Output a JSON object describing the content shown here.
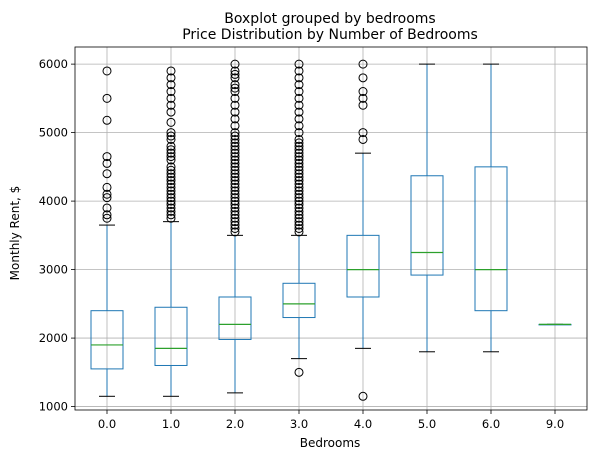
{
  "chart_data": {
    "type": "boxplot",
    "suptitle": "Boxplot grouped by bedrooms",
    "title": "Price Distribution by Number of Bedrooms",
    "xlabel": "Bedrooms",
    "ylabel": "Monthly Rent, $",
    "ylim": [
      950,
      6250
    ],
    "yticks": [
      1000,
      2000,
      3000,
      4000,
      5000,
      6000
    ],
    "grid": true,
    "colors": {
      "box": "#1f77b4",
      "median": "#2ca02c",
      "whisker_cap": "#000000",
      "grid": "#b0b0b0"
    },
    "categories": [
      "0.0",
      "1.0",
      "2.0",
      "3.0",
      "4.0",
      "5.0",
      "6.0",
      "9.0"
    ],
    "boxes": [
      {
        "category": "0.0",
        "whislo": 1150,
        "q1": 1550,
        "med": 1900,
        "q3": 2400,
        "whishi": 3650,
        "fliers": [
          3750,
          3800,
          3900,
          4050,
          4100,
          4200,
          4400,
          4550,
          4650,
          5180,
          5500,
          5900
        ]
      },
      {
        "category": "1.0",
        "whislo": 1150,
        "q1": 1600,
        "med": 1850,
        "q3": 2450,
        "whishi": 3700,
        "fliers": [
          3750,
          3800,
          3850,
          3900,
          3950,
          4000,
          4050,
          4100,
          4150,
          4200,
          4250,
          4300,
          4350,
          4400,
          4450,
          4500,
          4600,
          4650,
          4700,
          4750,
          4800,
          4900,
          4950,
          5000,
          5150,
          5300,
          5400,
          5500,
          5600,
          5700,
          5800,
          5900
        ]
      },
      {
        "category": "2.0",
        "whislo": 1200,
        "q1": 1980,
        "med": 2200,
        "q3": 2600,
        "whishi": 3500,
        "fliers": [
          3550,
          3600,
          3650,
          3700,
          3750,
          3800,
          3850,
          3900,
          3950,
          4000,
          4050,
          4100,
          4150,
          4200,
          4250,
          4300,
          4350,
          4400,
          4450,
          4500,
          4550,
          4600,
          4650,
          4700,
          4750,
          4800,
          4850,
          4900,
          4950,
          5000,
          5100,
          5200,
          5300,
          5400,
          5500,
          5600,
          5650,
          5700,
          5800,
          5850,
          5900,
          6000
        ]
      },
      {
        "category": "3.0",
        "whislo": 1700,
        "q1": 2300,
        "med": 2500,
        "q3": 2800,
        "whishi": 3500,
        "fliers": [
          1500,
          3550,
          3600,
          3650,
          3700,
          3750,
          3800,
          3850,
          3900,
          3950,
          4000,
          4050,
          4100,
          4150,
          4200,
          4250,
          4300,
          4350,
          4400,
          4450,
          4500,
          4550,
          4600,
          4650,
          4700,
          4750,
          4800,
          4850,
          4900,
          5000,
          5100,
          5200,
          5300,
          5400,
          5500,
          5600,
          5700,
          5800,
          5900,
          6000
        ]
      },
      {
        "category": "4.0",
        "whislo": 1850,
        "q1": 2600,
        "med": 3000,
        "q3": 3500,
        "whishi": 4700,
        "fliers": [
          1150,
          4900,
          5000,
          5400,
          5500,
          5600,
          5800,
          6000
        ]
      },
      {
        "category": "5.0",
        "whislo": 1800,
        "q1": 2920,
        "med": 3250,
        "q3": 4370,
        "whishi": 6000,
        "fliers": []
      },
      {
        "category": "6.0",
        "whislo": 1800,
        "q1": 2400,
        "med": 3000,
        "q3": 4500,
        "whishi": 6000,
        "fliers": []
      },
      {
        "category": "9.0",
        "whislo": 2200,
        "q1": 2200,
        "med": 2200,
        "q3": 2200,
        "whishi": 2200,
        "fliers": []
      }
    ]
  }
}
